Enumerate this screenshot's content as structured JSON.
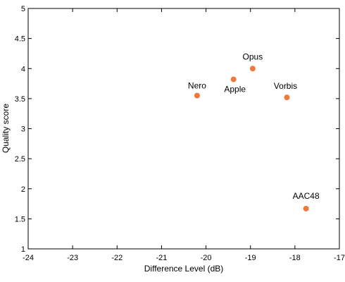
{
  "chart_data": {
    "type": "scatter",
    "title": "",
    "xlabel": "Difference Level (dB)",
    "ylabel": "Quality score",
    "xlim": [
      -24,
      -17
    ],
    "ylim": [
      1,
      5
    ],
    "xticks": [
      -24,
      -23,
      -22,
      -21,
      -20,
      -19,
      -18,
      -17
    ],
    "yticks": [
      1,
      1.5,
      2,
      2.5,
      3,
      3.5,
      4,
      4.5,
      5
    ],
    "grid": false,
    "legend": "none",
    "marker_color": "#f07a3c",
    "points": [
      {
        "label": "Nero",
        "x": -20.2,
        "y": 3.55
      },
      {
        "label": "Apple",
        "x": -19.38,
        "y": 3.82
      },
      {
        "label": "Opus",
        "x": -18.95,
        "y": 4.0
      },
      {
        "label": "Vorbis",
        "x": -18.18,
        "y": 3.52
      },
      {
        "label": "AAC48",
        "x": -17.75,
        "y": 1.67
      }
    ]
  }
}
